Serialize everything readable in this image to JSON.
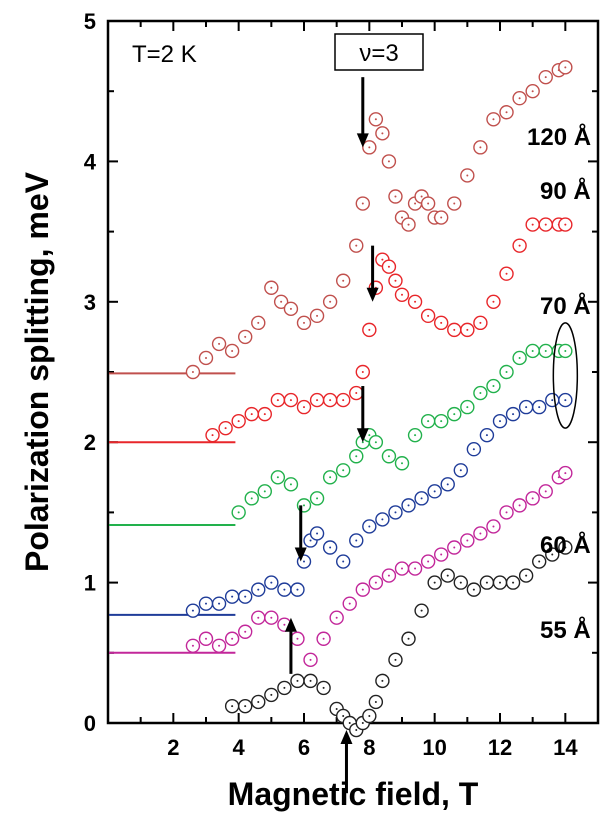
{
  "chart_data": {
    "type": "scatter",
    "title": "",
    "xlabel": "Magnetic field, T",
    "ylabel": "Polarization splitting, meV",
    "xlim": [
      0,
      15
    ],
    "ylim": [
      0,
      5
    ],
    "xticks": [
      2,
      4,
      6,
      8,
      10,
      12,
      14
    ],
    "yticks": [
      0,
      1,
      2,
      3,
      4,
      5
    ],
    "grid": false,
    "legend": "none",
    "annotations": [
      {
        "text": "T=2 K"
      },
      {
        "text": "ν=3",
        "boxed": true
      }
    ],
    "series": [
      {
        "name": "120 Å",
        "color": "#c0504d",
        "baseline": 2.49,
        "x": [
          2.6,
          3.0,
          3.4,
          3.8,
          4.2,
          4.6,
          5.0,
          5.3,
          5.6,
          6.0,
          6.4,
          6.8,
          7.2,
          7.6,
          7.8,
          8.0,
          8.2,
          8.4,
          8.6,
          8.8,
          9.0,
          9.2,
          9.4,
          9.6,
          9.8,
          10.0,
          10.2,
          10.6,
          11.0,
          11.4,
          11.8,
          12.2,
          12.6,
          13.0,
          13.4,
          13.8,
          14.0
        ],
        "y": [
          2.5,
          2.6,
          2.7,
          2.65,
          2.75,
          2.85,
          3.1,
          3.0,
          2.95,
          2.85,
          2.9,
          3.0,
          3.15,
          3.4,
          3.7,
          4.1,
          4.3,
          4.2,
          4.0,
          3.75,
          3.6,
          3.55,
          3.7,
          3.75,
          3.7,
          3.6,
          3.6,
          3.7,
          3.9,
          4.1,
          4.3,
          4.35,
          4.45,
          4.5,
          4.6,
          4.65,
          4.67
        ]
      },
      {
        "name": "90 Å",
        "color": "#e8262a",
        "baseline": 2.0,
        "x": [
          3.2,
          3.6,
          4.0,
          4.4,
          4.8,
          5.2,
          5.6,
          6.0,
          6.4,
          6.8,
          7.2,
          7.6,
          7.8,
          8.0,
          8.2,
          8.4,
          8.6,
          8.8,
          9.0,
          9.4,
          9.8,
          10.2,
          10.6,
          11.0,
          11.4,
          11.8,
          12.2,
          12.6,
          13.0,
          13.4,
          13.8,
          14.0
        ],
        "y": [
          2.05,
          2.1,
          2.15,
          2.2,
          2.2,
          2.3,
          2.3,
          2.25,
          2.3,
          2.3,
          2.3,
          2.35,
          2.5,
          2.8,
          3.1,
          3.3,
          3.25,
          3.15,
          3.05,
          3.0,
          2.9,
          2.85,
          2.8,
          2.8,
          2.85,
          3.0,
          3.2,
          3.4,
          3.55,
          3.55,
          3.55,
          3.55
        ]
      },
      {
        "name": "70 Å",
        "color": "#22b14c",
        "baseline": 1.41,
        "x": [
          4.0,
          4.4,
          4.8,
          5.2,
          5.6,
          6.0,
          6.4,
          6.8,
          7.2,
          7.6,
          7.8,
          8.0,
          8.2,
          8.6,
          9.0,
          9.4,
          9.8,
          10.2,
          10.6,
          11.0,
          11.4,
          11.8,
          12.2,
          12.6,
          13.0,
          13.4,
          13.8,
          14.0
        ],
        "y": [
          1.5,
          1.6,
          1.65,
          1.75,
          1.7,
          1.55,
          1.6,
          1.75,
          1.8,
          1.9,
          2.0,
          2.05,
          2.0,
          1.9,
          1.85,
          2.05,
          2.15,
          2.15,
          2.2,
          2.25,
          2.35,
          2.4,
          2.5,
          2.6,
          2.65,
          2.65,
          2.65,
          2.65
        ]
      },
      {
        "name": "",
        "color": "#1f3c99",
        "baseline": 0.77,
        "x": [
          2.6,
          3.0,
          3.4,
          3.8,
          4.2,
          4.6,
          5.0,
          5.4,
          5.8,
          6.0,
          6.2,
          6.4,
          6.8,
          7.2,
          7.6,
          8.0,
          8.4,
          8.8,
          9.2,
          9.6,
          10.0,
          10.4,
          10.8,
          11.2,
          11.6,
          12.0,
          12.4,
          12.8,
          13.2,
          13.6,
          14.0
        ],
        "y": [
          0.8,
          0.85,
          0.85,
          0.9,
          0.9,
          0.95,
          1.0,
          0.95,
          0.95,
          1.15,
          1.3,
          1.35,
          1.25,
          1.15,
          1.3,
          1.4,
          1.45,
          1.5,
          1.55,
          1.6,
          1.65,
          1.7,
          1.8,
          1.95,
          2.05,
          2.15,
          2.2,
          2.25,
          2.25,
          2.3,
          2.3
        ]
      },
      {
        "name": "60 Å",
        "color": "#c2279a",
        "baseline": 0.5,
        "x": [
          2.6,
          3.0,
          3.4,
          3.8,
          4.2,
          4.6,
          5.0,
          5.4,
          5.8,
          6.2,
          6.6,
          7.0,
          7.4,
          7.8,
          8.2,
          8.6,
          9.0,
          9.4,
          9.8,
          10.2,
          10.6,
          11.0,
          11.4,
          11.8,
          12.2,
          12.6,
          13.0,
          13.4,
          13.8,
          14.0
        ],
        "y": [
          0.55,
          0.6,
          0.55,
          0.6,
          0.65,
          0.75,
          0.75,
          0.7,
          0.6,
          0.45,
          0.6,
          0.75,
          0.85,
          0.95,
          1.0,
          1.05,
          1.1,
          1.1,
          1.15,
          1.2,
          1.25,
          1.3,
          1.35,
          1.4,
          1.5,
          1.55,
          1.6,
          1.65,
          1.75,
          1.78
        ]
      },
      {
        "name": "55 Å",
        "color": "#222222",
        "baseline": null,
        "x": [
          3.8,
          4.2,
          4.6,
          5.0,
          5.4,
          5.8,
          6.2,
          6.6,
          7.0,
          7.2,
          7.4,
          7.6,
          7.8,
          8.0,
          8.2,
          8.4,
          8.8,
          9.2,
          9.6,
          10.0,
          10.4,
          10.8,
          11.2,
          11.6,
          12.0,
          12.4,
          12.8,
          13.2,
          13.6,
          14.0
        ],
        "y": [
          0.12,
          0.12,
          0.15,
          0.2,
          0.25,
          0.3,
          0.3,
          0.25,
          0.1,
          0.05,
          0.0,
          -0.05,
          0.0,
          0.05,
          0.15,
          0.3,
          0.45,
          0.6,
          0.8,
          1.0,
          1.05,
          1.0,
          0.95,
          1.0,
          1.0,
          1.0,
          1.05,
          1.15,
          1.2,
          1.25
        ]
      }
    ],
    "arrows": [
      {
        "direction": "down",
        "x": 7.8,
        "y_tip": 4.1,
        "y_tail": 4.6
      },
      {
        "direction": "down",
        "x": 8.1,
        "y_tip": 3.0,
        "y_tail": 3.4
      },
      {
        "direction": "down",
        "x": 7.8,
        "y_tip": 2.0,
        "y_tail": 2.4
      },
      {
        "direction": "down",
        "x": 5.9,
        "y_tip": 1.15,
        "y_tail": 1.55
      },
      {
        "direction": "up",
        "x": 5.6,
        "y_tip": 0.75,
        "y_tail": 0.35
      },
      {
        "direction": "up",
        "x": 7.3,
        "y_tip": -0.05,
        "y_tail": -0.5
      }
    ],
    "ellipse": {
      "x": 14.0,
      "y_low": 2.2,
      "y_high": 2.75
    }
  }
}
